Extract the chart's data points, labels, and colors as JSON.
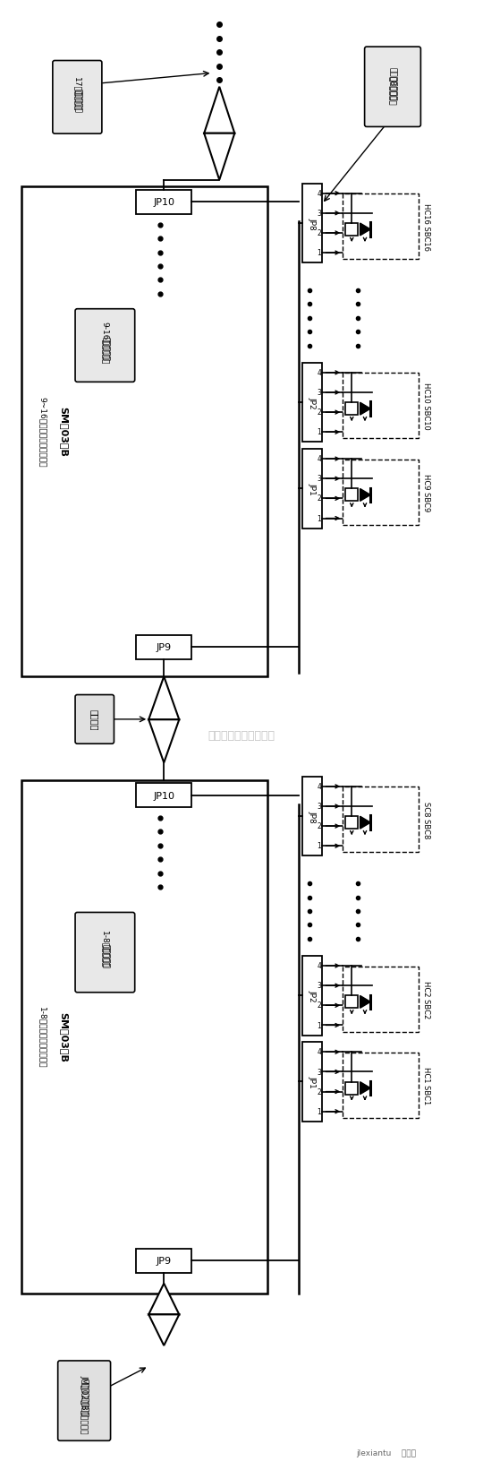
{
  "bg_color": "#f0ede8",
  "fig_width": 6.85,
  "fig_height": 21.19,
  "watermark": "杭州将睿科技有限公司",
  "watermark2": "jlexiantu  接线图"
}
